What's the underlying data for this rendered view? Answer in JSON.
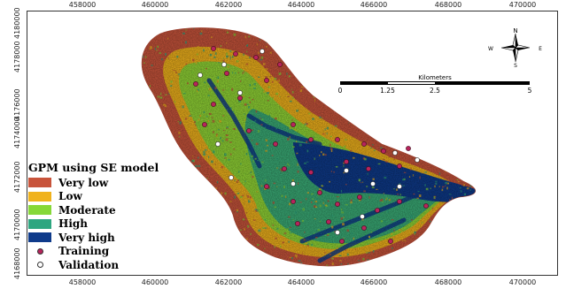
{
  "map": {
    "x_ticks": [
      "458000",
      "460000",
      "462000",
      "464000",
      "466000",
      "468000",
      "470000"
    ],
    "y_ticks": [
      "4180000",
      "4178000",
      "4176000",
      "4174000",
      "4172000",
      "4170000",
      "4168000"
    ]
  },
  "legend": {
    "title": "GPM using SE model",
    "classes": [
      {
        "label": "Very low",
        "color": "#c8543b"
      },
      {
        "label": "Low",
        "color": "#f0b21c"
      },
      {
        "label": "Moderate",
        "color": "#86d838"
      },
      {
        "label": "High",
        "color": "#2ea680"
      },
      {
        "label": "Very high",
        "color": "#0e3a8a"
      }
    ],
    "points": [
      {
        "label": "Training",
        "color": "#b7245c"
      },
      {
        "label": "Validation",
        "color": "#ffffff"
      }
    ]
  },
  "scale": {
    "title": "Kilometers",
    "labels": [
      "0",
      "1.25",
      "2.5",
      "5"
    ]
  },
  "north_arrow": {
    "north": "N",
    "south": "S",
    "east": "E",
    "west": "W"
  }
}
